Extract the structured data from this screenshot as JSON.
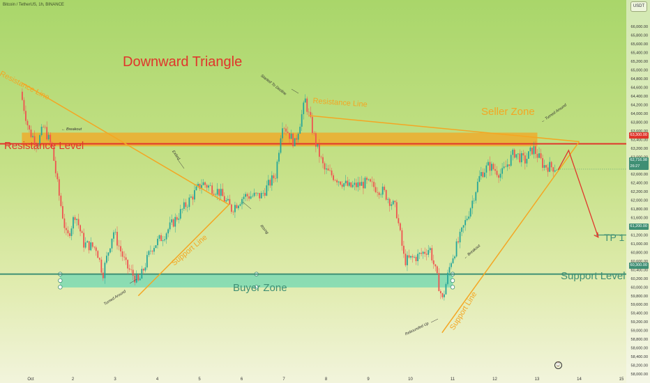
{
  "header": {
    "ticker": "Bitcoin / TetherUS, 1h, BINANCE",
    "currency_badge": "USDT"
  },
  "chart_data": {
    "type": "candlestick",
    "symbol": "Bitcoin / TetherUS",
    "interval": "1h",
    "exchange": "BINANCE",
    "x_ticks": [
      "Oct",
      "2",
      "3",
      "4",
      "5",
      "6",
      "7",
      "8",
      "9",
      "10",
      "11",
      "12",
      "13",
      "14",
      "15"
    ],
    "x_range_days": [
      0.8,
      15.0
    ],
    "y_ticks": [
      58000,
      58200,
      58400,
      58600,
      58800,
      59000,
      59200,
      59400,
      59600,
      59800,
      60000,
      60200,
      60400,
      60600,
      60800,
      61000,
      61200,
      61400,
      61600,
      61800,
      62000,
      62200,
      62400,
      62600,
      62800,
      63000,
      63200,
      63400,
      63600,
      63800,
      64000,
      64200,
      64400,
      64600,
      64800,
      65000,
      65200,
      65400,
      65600,
      65800,
      66000
    ],
    "y_tick_labels": [
      "58,000.00",
      "58,200.00",
      "58,400.00",
      "58,600.00",
      "58,800.00",
      "59,000.00",
      "59,200.00",
      "59,400.00",
      "59,600.00",
      "59,800.00",
      "60,000.00",
      "60,200.00",
      "60,400.00",
      "60,600.00",
      "60,800.00",
      "61,000.00",
      "61,200.00",
      "61,400.00",
      "61,600.00",
      "61,800.00",
      "62,000.00",
      "62,200.00",
      "62,400.00",
      "62,600.00",
      "62,800.00",
      "63,000.00",
      "63,200.00",
      "63,400.00",
      "63,600.00",
      "63,800.00",
      "64,000.00",
      "64,200.00",
      "64,400.00",
      "64,600.00",
      "64,800.00",
      "65,000.00",
      "65,200.00",
      "65,400.00",
      "65,600.00",
      "65,800.00",
      "66,000.00"
    ],
    "y_range": [
      58000,
      66200
    ],
    "price_path": [
      [
        0.8,
        64500
      ],
      [
        1.0,
        63600
      ],
      [
        1.2,
        63300
      ],
      [
        1.35,
        63700
      ],
      [
        1.55,
        63200
      ],
      [
        1.7,
        62200
      ],
      [
        1.9,
        61100
      ],
      [
        2.1,
        61700
      ],
      [
        2.3,
        61000
      ],
      [
        2.6,
        60900
      ],
      [
        2.75,
        60300
      ],
      [
        3.0,
        61300
      ],
      [
        3.3,
        60500
      ],
      [
        3.6,
        60100
      ],
      [
        3.9,
        60900
      ],
      [
        4.2,
        61200
      ],
      [
        4.5,
        61600
      ],
      [
        4.8,
        62000
      ],
      [
        5.1,
        62400
      ],
      [
        5.5,
        62200
      ],
      [
        5.8,
        61800
      ],
      [
        6.1,
        62100
      ],
      [
        6.5,
        62100
      ],
      [
        6.85,
        62600
      ],
      [
        7.0,
        63800
      ],
      [
        7.3,
        63300
      ],
      [
        7.55,
        64300
      ],
      [
        7.8,
        63300
      ],
      [
        8.0,
        62700
      ],
      [
        8.3,
        62500
      ],
      [
        8.6,
        62300
      ],
      [
        9.0,
        62400
      ],
      [
        9.4,
        62200
      ],
      [
        9.7,
        61800
      ],
      [
        9.9,
        60600
      ],
      [
        10.2,
        60700
      ],
      [
        10.5,
        60900
      ],
      [
        10.8,
        59700
      ],
      [
        11.0,
        60600
      ],
      [
        11.2,
        61100
      ],
      [
        11.45,
        61800
      ],
      [
        11.7,
        62600
      ],
      [
        11.9,
        62800
      ],
      [
        12.2,
        62600
      ],
      [
        12.5,
        63100
      ],
      [
        12.75,
        62900
      ],
      [
        12.95,
        63200
      ],
      [
        13.2,
        62800
      ],
      [
        13.5,
        62750
      ]
    ],
    "levels": [
      {
        "name": "Resistance Level",
        "price": 63300,
        "tag": "63,300.00",
        "color": "#e0352b"
      },
      {
        "name": "Support Level",
        "price": 60300,
        "tag": "60,300.00",
        "color": "#3f8f74"
      },
      {
        "name": "TP 1",
        "price": 61200,
        "tag": "61,200.00",
        "color": "#3f8f74"
      }
    ],
    "current_price_tag": "62,716.98",
    "current_price_countdown": "26:27",
    "current_price": 62716.98,
    "zones": [
      {
        "name": "Seller Zone",
        "price_top": 63550,
        "price_bottom": 63250,
        "day_from": 0.8,
        "day_to": 13.0,
        "color": "#f4a623"
      },
      {
        "name": "Buyer Zone",
        "price_top": 60300,
        "price_bottom": 60000,
        "day_from": 1.7,
        "day_to": 11.0,
        "color": "#6fd8b4"
      }
    ]
  },
  "annotations": {
    "title": "Downward Triangle",
    "resistance_level": "Resistance Level",
    "support_level": "Support Level",
    "seller_zone": "Seller Zone",
    "buyer_zone": "Buyer Zone",
    "tp1": "TP 1",
    "resistance_line_left": "Resistance Line",
    "resistance_line_right": "Resistance Line",
    "support_line_left": "Support Line",
    "support_line_right": "Support Line",
    "breakout_left": "← Breakout",
    "breakout_right": "← Breakout",
    "exited": "Exited",
    "rising": "Rising",
    "turned_around_left": "Turned Around",
    "turned_around_right": "← Turned Around",
    "started_to_decline": "Started To Decline",
    "rebounded_up": "Rebounded Up"
  },
  "colors": {
    "orange": "#f4a623",
    "red": "#e0352b",
    "teal": "#3f8f74",
    "candle_up": "#26a69a",
    "candle_down": "#ef5350"
  },
  "footer": {
    "clock_icon": "clock-icon"
  }
}
